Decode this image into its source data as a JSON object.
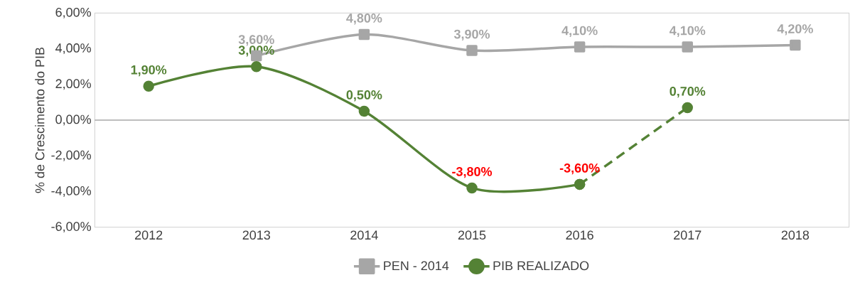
{
  "chart_data": {
    "type": "line",
    "ylabel": "% de Crescimento do PIB",
    "categories": [
      "2012",
      "2013",
      "2014",
      "2015",
      "2016",
      "2017",
      "2018"
    ],
    "series": [
      {
        "name": "PEN - 2014",
        "color": "#a6a6a6",
        "marker": "square",
        "values": [
          null,
          3.6,
          4.8,
          3.9,
          4.1,
          4.1,
          4.2
        ],
        "value_labels": [
          null,
          "3,60%",
          "4,80%",
          "3,90%",
          "4,10%",
          "4,10%",
          "4,20%"
        ]
      },
      {
        "name": "PIB REALIZADO",
        "color": "#548235",
        "marker": "circle",
        "values": [
          1.9,
          3.0,
          0.5,
          -3.8,
          -3.6,
          null,
          null
        ],
        "value_labels": [
          "1,90%",
          "3,00%",
          "0,50%",
          "-3,80%",
          "-3,60%",
          null,
          null
        ]
      },
      {
        "color": "#548235",
        "marker": "circle",
        "line_style": "dashed",
        "values": [
          null,
          null,
          null,
          null,
          -3.6,
          0.7,
          null
        ],
        "value_labels": [
          null,
          null,
          null,
          null,
          null,
          "0,70%",
          null
        ]
      }
    ],
    "ylim": [
      -6,
      6
    ],
    "yticks": [
      {
        "value": -6,
        "label": "-6,00%"
      },
      {
        "value": -4,
        "label": "-4,00%"
      },
      {
        "value": -2,
        "label": "-2,00%"
      },
      {
        "value": 0,
        "label": "0,00%"
      },
      {
        "value": 2,
        "label": "2,00%"
      },
      {
        "value": 4,
        "label": "4,00%"
      },
      {
        "value": 6,
        "label": "6,00%"
      }
    ],
    "ref_lines": [
      {
        "axis": "y",
        "value": 0,
        "color": "#7f7f7f"
      }
    ],
    "legend": "bottom",
    "grid": false
  }
}
